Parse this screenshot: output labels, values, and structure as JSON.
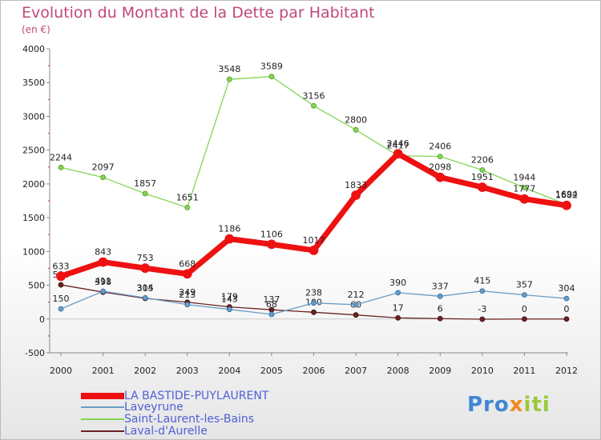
{
  "title": "Evolution du Montant de la Dette par Habitant",
  "subtitle": "(en €)",
  "logo": "Proxiti",
  "colors": {
    "bastide": "#ee1111",
    "laveyrune": "#6a9bc4",
    "saint_laurent": "#86d456",
    "laval": "#6b2222",
    "axis": "#888888",
    "text": "#222222"
  },
  "chart_data": {
    "type": "line",
    "title": "Evolution du Montant de la Dette par Habitant",
    "ylabel": "(en €)",
    "xlabel": "",
    "x": [
      "2000",
      "2001",
      "2002",
      "2003",
      "2004",
      "2005",
      "2006",
      "2007",
      "2008",
      "2009",
      "2010",
      "2011",
      "2012"
    ],
    "ylim": [
      -500,
      4000
    ],
    "yticks": [
      -500,
      0,
      500,
      1000,
      1500,
      2000,
      2500,
      3000,
      3500,
      4000
    ],
    "legend_position": "bottom-left",
    "series": [
      {
        "key": "laval",
        "name": "Laval-d'Aurelle",
        "values": [
          506,
          398,
          305,
          249,
          179,
          137,
          100,
          60,
          17,
          6,
          -3,
          0,
          0
        ]
      },
      {
        "key": "laveyrune",
        "name": "Laveyrune",
        "values": [
          150,
          411,
          314,
          213,
          143,
          68,
          238,
          212,
          390,
          337,
          415,
          357,
          304
        ]
      },
      {
        "key": "saint_laurent",
        "name": "Saint-Laurent-les-Bains",
        "values": [
          2244,
          2097,
          1857,
          1651,
          3548,
          3589,
          3156,
          2800,
          2417,
          2406,
          2206,
          1944,
          1694
        ]
      },
      {
        "key": "bastide",
        "name": "LA BASTIDE-PUYLAURENT",
        "values": [
          633,
          843,
          753,
          668,
          1186,
          1106,
          1017,
          1833,
          2446,
          2098,
          1951,
          1777,
          1682
        ]
      }
    ]
  }
}
